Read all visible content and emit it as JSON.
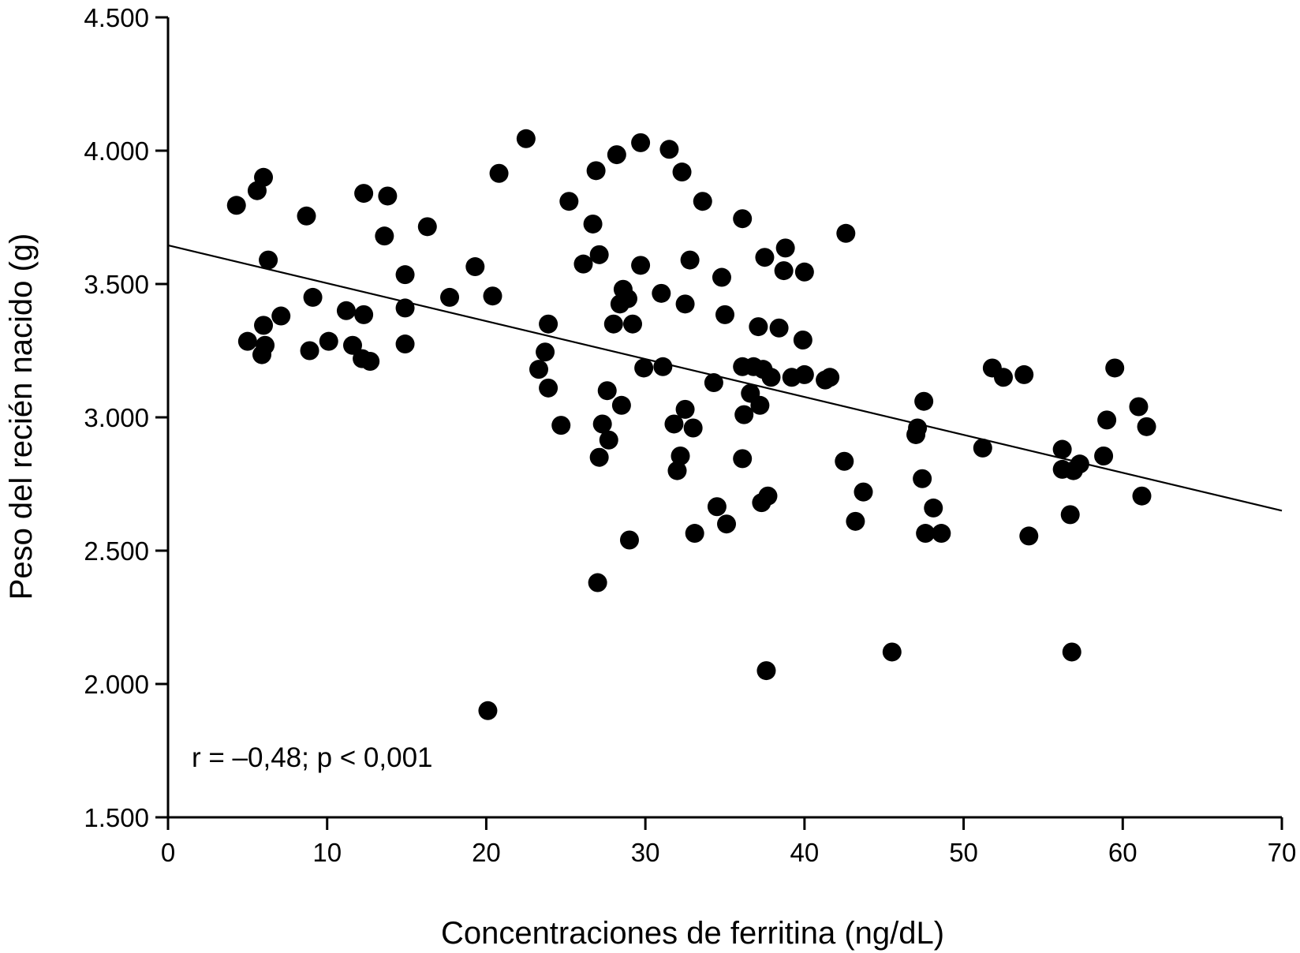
{
  "chart_data": {
    "type": "scatter",
    "title": "",
    "xlabel": "Concentraciones de ferritina (ng/dL)",
    "ylabel": "Peso del recién nacido (g)",
    "xlim": [
      0,
      70
    ],
    "ylim": [
      1500,
      4500
    ],
    "x_ticks": [
      0,
      10,
      20,
      30,
      40,
      50,
      60,
      70
    ],
    "x_tick_labels": [
      "0",
      "10",
      "20",
      "30",
      "40",
      "50",
      "60",
      "70"
    ],
    "y_ticks": [
      1500,
      2000,
      2500,
      3000,
      3500,
      4000,
      4500
    ],
    "y_tick_labels": [
      "1.500",
      "2.000",
      "2.500",
      "3.000",
      "3.500",
      "4.000",
      "4.500"
    ],
    "annotation": "r = –0,48; p < 0,001",
    "grid": false,
    "marker_color": "#000000",
    "regression_line": {
      "x": [
        0,
        70
      ],
      "y": [
        3645,
        2650
      ]
    },
    "points": [
      [
        4.3,
        3795
      ],
      [
        5.0,
        3285
      ],
      [
        5.6,
        3850
      ],
      [
        6.0,
        3900
      ],
      [
        6.3,
        3590
      ],
      [
        6.0,
        3345
      ],
      [
        6.1,
        3270
      ],
      [
        5.9,
        3235
      ],
      [
        7.1,
        3380
      ],
      [
        8.7,
        3755
      ],
      [
        9.1,
        3450
      ],
      [
        8.9,
        3250
      ],
      [
        10.1,
        3285
      ],
      [
        11.2,
        3400
      ],
      [
        11.6,
        3270
      ],
      [
        12.3,
        3385
      ],
      [
        12.3,
        3840
      ],
      [
        12.2,
        3220
      ],
      [
        12.7,
        3210
      ],
      [
        13.8,
        3830
      ],
      [
        13.6,
        3680
      ],
      [
        14.9,
        3535
      ],
      [
        14.9,
        3410
      ],
      [
        14.9,
        3275
      ],
      [
        16.3,
        3715
      ],
      [
        17.7,
        3450
      ],
      [
        19.3,
        3565
      ],
      [
        20.4,
        3455
      ],
      [
        20.8,
        3915
      ],
      [
        20.1,
        1900
      ],
      [
        22.5,
        4045
      ],
      [
        23.3,
        3180
      ],
      [
        23.7,
        3245
      ],
      [
        23.9,
        3350
      ],
      [
        23.9,
        3110
      ],
      [
        24.7,
        2970
      ],
      [
        25.2,
        3810
      ],
      [
        26.1,
        3575
      ],
      [
        26.7,
        3725
      ],
      [
        27.1,
        3610
      ],
      [
        26.9,
        3925
      ],
      [
        27.1,
        2850
      ],
      [
        27.3,
        2975
      ],
      [
        27.6,
        3100
      ],
      [
        27.7,
        2915
      ],
      [
        28.0,
        3350
      ],
      [
        28.2,
        3985
      ],
      [
        28.4,
        3425
      ],
      [
        28.6,
        3480
      ],
      [
        28.5,
        3045
      ],
      [
        28.9,
        3445
      ],
      [
        29.2,
        3350
      ],
      [
        29.0,
        2540
      ],
      [
        29.7,
        3570
      ],
      [
        29.7,
        4030
      ],
      [
        29.9,
        3185
      ],
      [
        27.0,
        2380
      ],
      [
        31.0,
        3465
      ],
      [
        31.1,
        3190
      ],
      [
        31.5,
        4005
      ],
      [
        31.8,
        2975
      ],
      [
        32.0,
        2800
      ],
      [
        32.3,
        3920
      ],
      [
        32.2,
        2855
      ],
      [
        32.5,
        3425
      ],
      [
        32.5,
        3030
      ],
      [
        32.8,
        3590
      ],
      [
        33.0,
        2960
      ],
      [
        33.1,
        2565
      ],
      [
        33.6,
        3810
      ],
      [
        34.3,
        3130
      ],
      [
        34.5,
        2665
      ],
      [
        34.8,
        3525
      ],
      [
        35.0,
        3385
      ],
      [
        35.1,
        2600
      ],
      [
        36.1,
        3745
      ],
      [
        36.1,
        3190
      ],
      [
        36.2,
        3010
      ],
      [
        36.1,
        2845
      ],
      [
        36.6,
        3090
      ],
      [
        36.8,
        3190
      ],
      [
        37.1,
        3340
      ],
      [
        37.2,
        3045
      ],
      [
        37.5,
        3600
      ],
      [
        37.4,
        3180
      ],
      [
        37.3,
        2680
      ],
      [
        37.7,
        2705
      ],
      [
        37.9,
        3150
      ],
      [
        37.6,
        2050
      ],
      [
        38.4,
        3335
      ],
      [
        38.8,
        3635
      ],
      [
        38.7,
        3550
      ],
      [
        39.2,
        3150
      ],
      [
        39.9,
        3290
      ],
      [
        40.0,
        3545
      ],
      [
        40.0,
        3160
      ],
      [
        41.3,
        3140
      ],
      [
        41.6,
        3150
      ],
      [
        42.6,
        3690
      ],
      [
        42.5,
        2835
      ],
      [
        43.2,
        2610
      ],
      [
        43.7,
        2720
      ],
      [
        45.5,
        2120
      ],
      [
        47.0,
        2935
      ],
      [
        47.1,
        2960
      ],
      [
        47.5,
        3060
      ],
      [
        47.4,
        2770
      ],
      [
        47.6,
        2565
      ],
      [
        48.1,
        2660
      ],
      [
        48.6,
        2565
      ],
      [
        51.2,
        2885
      ],
      [
        51.8,
        3185
      ],
      [
        52.5,
        3150
      ],
      [
        53.8,
        3160
      ],
      [
        54.1,
        2555
      ],
      [
        56.2,
        2880
      ],
      [
        56.2,
        2805
      ],
      [
        56.7,
        2635
      ],
      [
        56.9,
        2800
      ],
      [
        57.3,
        2825
      ],
      [
        56.8,
        2120
      ],
      [
        58.8,
        2855
      ],
      [
        59.0,
        2990
      ],
      [
        59.5,
        3185
      ],
      [
        61.0,
        3040
      ],
      [
        61.2,
        2705
      ],
      [
        61.5,
        2965
      ]
    ]
  }
}
